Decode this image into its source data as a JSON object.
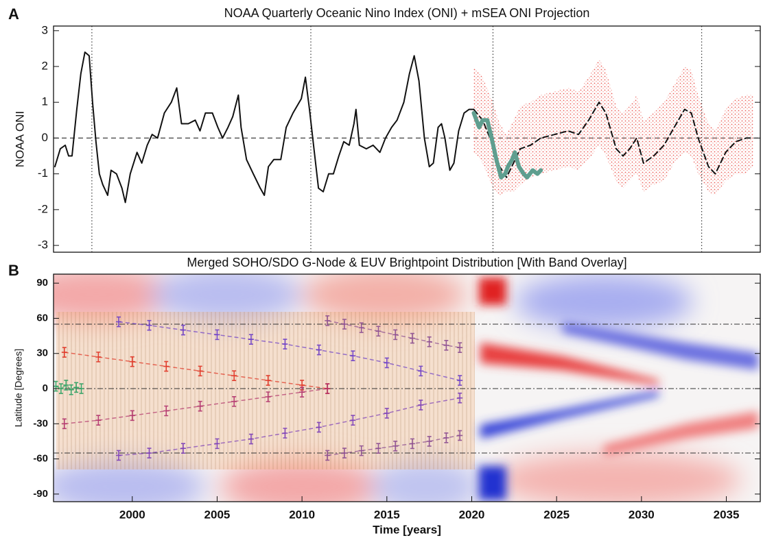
{
  "chart_data": [
    {
      "type": "line",
      "panel_label": "A",
      "title": "NOAA Quarterly Oceanic Nino Index (ONI) + mSEA ONI Projection",
      "y_label": "NOAA ONI",
      "xlim": [
        1995.36,
        2037.0
      ],
      "ylim": [
        -3.19,
        3.13
      ],
      "yticks": [
        -3,
        -2,
        -1,
        0,
        1,
        2,
        3
      ],
      "zero_line": 0,
      "vlines": [
        1997.62,
        2010.52,
        2021.25,
        2033.55
      ],
      "series": [
        {
          "style": "solid",
          "color": "#111111",
          "width": 2,
          "x": [
            1995.44,
            1995.76,
            1996.05,
            1996.25,
            1996.45,
            1996.73,
            1996.97,
            1997.21,
            1997.46,
            1997.66,
            1997.86,
            1998.06,
            1998.26,
            1998.55,
            1998.75,
            1999.07,
            1999.39,
            1999.59,
            1999.88,
            2000.28,
            2000.56,
            2000.88,
            2001.17,
            2001.49,
            2001.89,
            2002.3,
            2002.62,
            2002.9,
            2003.3,
            2003.71,
            2003.99,
            2004.31,
            2004.72,
            2005.04,
            2005.32,
            2005.64,
            2005.92,
            2006.25,
            2006.41,
            2006.73,
            2007.13,
            2007.54,
            2007.78,
            2008.02,
            2008.34,
            2008.75,
            2009.07,
            2009.47,
            2009.96,
            2010.2,
            2010.44,
            2010.68,
            2010.97,
            2011.25,
            2011.57,
            2011.85,
            2012.17,
            2012.46,
            2012.78,
            2013.06,
            2013.18,
            2013.38,
            2013.79,
            2014.19,
            2014.59,
            2014.92,
            2015.28,
            2015.6,
            2016.0,
            2016.33,
            2016.61,
            2016.89,
            2017.21,
            2017.5,
            2017.74,
            2018.02,
            2018.22,
            2018.42,
            2018.71,
            2018.95,
            2019.23,
            2019.55,
            2019.84,
            2020.12
          ],
          "values": [
            -0.8,
            -0.3,
            -0.2,
            -0.5,
            -0.5,
            0.8,
            1.8,
            2.4,
            2.3,
            1.0,
            -0.1,
            -1.0,
            -1.3,
            -1.6,
            -0.9,
            -1.0,
            -1.4,
            -1.8,
            -1.0,
            -0.4,
            -0.7,
            -0.2,
            0.1,
            0.0,
            0.7,
            1.0,
            1.4,
            0.4,
            0.4,
            0.5,
            0.2,
            0.7,
            0.7,
            0.3,
            0.0,
            0.3,
            0.6,
            1.2,
            0.3,
            -0.6,
            -1.0,
            -1.4,
            -1.6,
            -0.8,
            -0.6,
            -0.6,
            0.3,
            0.7,
            1.1,
            1.7,
            0.8,
            -0.2,
            -1.4,
            -1.5,
            -1.0,
            -1.0,
            -0.5,
            -0.1,
            -0.2,
            0.4,
            0.8,
            -0.2,
            -0.3,
            -0.2,
            -0.4,
            0.0,
            0.3,
            0.5,
            1.0,
            1.8,
            2.3,
            1.6,
            0.0,
            -0.8,
            -0.7,
            0.3,
            0.4,
            0.0,
            -0.9,
            -0.7,
            0.2,
            0.7,
            0.8,
            0.8
          ]
        },
        {
          "style": "band",
          "color": "#e8413a",
          "x": [
            2020.12,
            2020.64,
            2021.25,
            2021.65,
            2022.05,
            2022.46,
            2022.86,
            2023.46,
            2024.07,
            2024.88,
            2025.68,
            2026.29,
            2026.89,
            2027.5,
            2027.9,
            2028.51,
            2028.91,
            2029.31,
            2029.72,
            2030.12,
            2030.72,
            2031.33,
            2031.93,
            2032.54,
            2032.94,
            2033.34,
            2033.95,
            2034.35,
            2034.96,
            2035.56,
            2036.17,
            2036.57
          ],
          "upper": [
            2.0,
            1.7,
            1.0,
            0.4,
            0.1,
            0.5,
            0.9,
            1.0,
            1.2,
            1.3,
            1.4,
            1.3,
            1.7,
            2.2,
            1.9,
            0.9,
            0.7,
            0.9,
            1.2,
            0.5,
            0.7,
            1.0,
            1.5,
            2.0,
            1.9,
            1.2,
            0.4,
            0.2,
            0.8,
            1.1,
            1.2,
            1.2
          ],
          "lower": [
            -0.4,
            -0.7,
            -1.4,
            -1.6,
            -1.5,
            -1.5,
            -1.3,
            -1.1,
            -1.0,
            -0.9,
            -0.8,
            -0.9,
            -0.6,
            -0.2,
            -0.5,
            -1.2,
            -1.4,
            -1.2,
            -1.0,
            -1.5,
            -1.3,
            -1.2,
            -0.7,
            -0.4,
            -0.5,
            -1.0,
            -1.5,
            -1.6,
            -1.2,
            -1.0,
            -1.0,
            -0.8
          ]
        },
        {
          "style": "dashed",
          "color": "#111111",
          "width": 2,
          "x": [
            2020.12,
            2020.64,
            2021.25,
            2021.65,
            2022.05,
            2022.46,
            2022.86,
            2023.46,
            2024.07,
            2024.88,
            2025.68,
            2026.29,
            2026.89,
            2027.5,
            2027.9,
            2028.51,
            2028.91,
            2029.31,
            2029.72,
            2030.12,
            2030.72,
            2031.33,
            2031.93,
            2032.54,
            2032.94,
            2033.34,
            2033.95,
            2034.35,
            2034.96,
            2035.56,
            2036.17,
            2036.57
          ],
          "values": [
            0.8,
            0.5,
            -0.2,
            -0.8,
            -1.1,
            -0.7,
            -0.3,
            -0.2,
            0.0,
            0.1,
            0.2,
            0.1,
            0.5,
            1.0,
            0.7,
            -0.3,
            -0.5,
            -0.3,
            0.0,
            -0.7,
            -0.5,
            -0.2,
            0.3,
            0.8,
            0.7,
            0.0,
            -0.8,
            -1.0,
            -0.4,
            -0.1,
            0.0,
            0.0
          ]
        },
        {
          "style": "solid",
          "color": "#5f9e8f",
          "width": 6,
          "x": [
            2020.12,
            2020.44,
            2020.64,
            2020.92,
            2021.17,
            2021.45,
            2021.73,
            2021.97,
            2022.13,
            2022.38,
            2022.54,
            2022.78,
            2023.06,
            2023.26,
            2023.59,
            2023.87,
            2024.07
          ],
          "values": [
            0.7,
            0.3,
            0.5,
            0.5,
            0.0,
            -0.6,
            -1.1,
            -1.0,
            -0.8,
            -0.6,
            -0.4,
            -0.8,
            -1.0,
            -1.1,
            -0.9,
            -1.0,
            -0.9
          ]
        }
      ]
    },
    {
      "type": "scatter",
      "panel_label": "B",
      "title": "Merged SOHO/SDO G-Node & EUV Brightpoint Distribution [With Band Overlay]",
      "x_label": "Time [years]",
      "y_label": "Latitude [Degrees]",
      "xlim": [
        1995.36,
        2037.0
      ],
      "ylim": [
        -96.5,
        97.7
      ],
      "xticks": [
        2000,
        2005,
        2010,
        2015,
        2020,
        2025,
        2030,
        2035
      ],
      "yticks": [
        -90,
        -60,
        -30,
        0,
        30,
        60,
        90
      ],
      "hlines": [
        -55,
        0,
        55
      ],
      "series": [
        {
          "color": "#6a3cc8",
          "x": [
            1999.2,
            2001,
            2003,
            2005,
            2007,
            2009,
            2011,
            2013,
            2015,
            2017,
            2019.3
          ],
          "values": [
            57,
            54,
            50,
            46,
            42,
            38,
            33,
            28,
            22,
            15,
            7
          ]
        },
        {
          "color": "#e03020",
          "x": [
            1996,
            1998,
            2000,
            2002,
            2004,
            2006,
            2008,
            2010,
            2011.5
          ],
          "values": [
            31,
            27,
            23,
            19,
            15,
            11,
            7,
            3,
            0
          ]
        },
        {
          "color": "#b0306a",
          "x": [
            1996,
            1998,
            2000,
            2002,
            2004,
            2006,
            2008,
            2010,
            2011.5
          ],
          "values": [
            -30,
            -27,
            -23,
            -19,
            -15,
            -11,
            -7,
            -3,
            0
          ]
        },
        {
          "color": "#7a3cb8",
          "x": [
            1999.2,
            2001,
            2003,
            2005,
            2007,
            2009,
            2011,
            2013,
            2015,
            2017,
            2019.3
          ],
          "values": [
            -57,
            -55,
            -51,
            -47,
            -43,
            -38,
            -33,
            -27,
            -21,
            -14,
            -8
          ]
        },
        {
          "color": "#8a4a90",
          "x": [
            2011.5,
            2012.5,
            2013.5,
            2014.5,
            2015.5,
            2016.5,
            2017.5,
            2018.5,
            2019.3
          ],
          "values": [
            58,
            55,
            52,
            49,
            46,
            43,
            40,
            37,
            35
          ]
        },
        {
          "color": "#8a4a90",
          "x": [
            2011.5,
            2012.5,
            2013.5,
            2014.5,
            2015.5,
            2016.5,
            2017.5,
            2018.5,
            2019.3
          ],
          "values": [
            -57,
            -55,
            -53,
            -51,
            -49,
            -47,
            -45,
            -42,
            -40
          ]
        },
        {
          "color": "#2aa060",
          "x": [
            1995.5,
            1995.8,
            1996.1,
            1996.4,
            1996.7,
            1997.0
          ],
          "values": [
            2,
            0,
            3,
            -1,
            1,
            0
          ]
        }
      ]
    }
  ]
}
